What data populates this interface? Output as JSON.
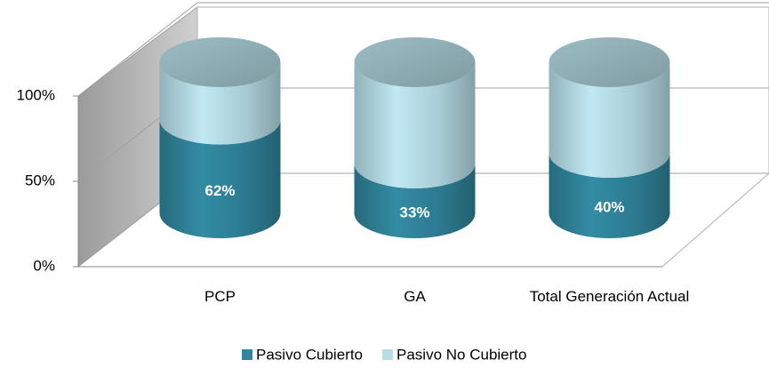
{
  "chart_data": {
    "type": "cylinder-stacked-100",
    "categories": [
      "PCP",
      "GA",
      "Total Generación Actual"
    ],
    "series": [
      {
        "name": "Pasivo Cubierto",
        "color": "#31859c",
        "values": [
          62,
          33,
          40
        ],
        "value_labels": [
          "62%",
          "33%",
          "40%"
        ]
      },
      {
        "name": "Pasivo No Cubierto",
        "color": "#b7dee8",
        "values": [
          38,
          67,
          60
        ]
      }
    ],
    "ylim": [
      0,
      100
    ],
    "yticks": [
      {
        "value": 0,
        "label": "0%"
      },
      {
        "value": 50,
        "label": "50%"
      },
      {
        "value": 100,
        "label": "100%"
      }
    ],
    "grid": true,
    "legend": "bottom"
  }
}
